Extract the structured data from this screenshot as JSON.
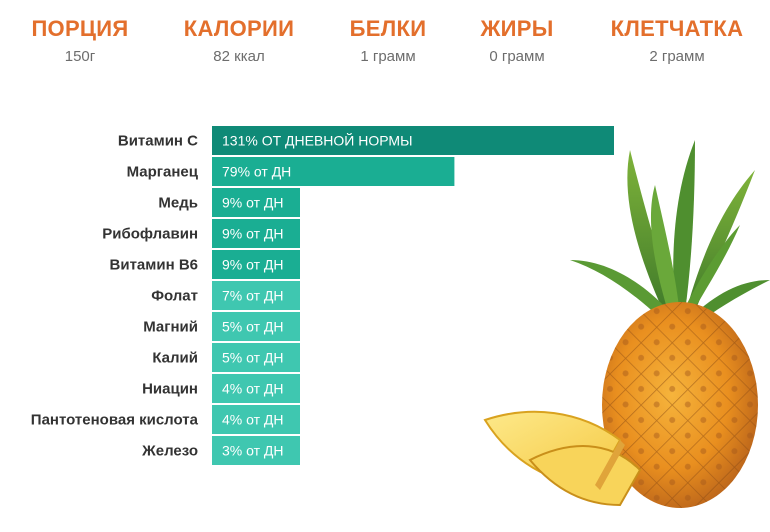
{
  "stats": [
    {
      "label": "ПОРЦИЯ",
      "value": "150г"
    },
    {
      "label": "КАЛОРИИ",
      "value": "82 ккал"
    },
    {
      "label": "БЕЛКИ",
      "value": "1 грамм"
    },
    {
      "label": "ЖИРЫ",
      "value": "0 грамм"
    },
    {
      "label": "КЛЕТЧАТКА",
      "value": "2 грамм"
    }
  ],
  "colors": {
    "accent": "#e36f2c",
    "bar_dark": "#0f8a77",
    "bar_mid": "#1aae93",
    "bar_light": "#3fc7b0",
    "label_text": "#333333"
  },
  "chart_data": {
    "type": "bar",
    "orientation": "horizontal",
    "categories": [
      "Витамин C",
      "Марганец",
      "Медь",
      "Рибофлавин",
      "Витамин B6",
      "Фолат",
      "Магний",
      "Калий",
      "Ниацин",
      "Пантотеновая кислота",
      "Железо"
    ],
    "values": [
      131,
      79,
      9,
      9,
      9,
      7,
      5,
      5,
      4,
      4,
      3
    ],
    "data_labels": [
      "131% ОТ ДНЕВНОЙ НОРМЫ",
      "79% от ДН",
      "9% от ДН",
      "9% от ДН",
      "9% от ДН",
      "7% от ДН",
      "5% от ДН",
      "5% от ДН",
      "4% от ДН",
      "4% от ДН",
      "3% от ДН"
    ],
    "unit": "% от ДН",
    "grid": false,
    "legend": "none"
  }
}
